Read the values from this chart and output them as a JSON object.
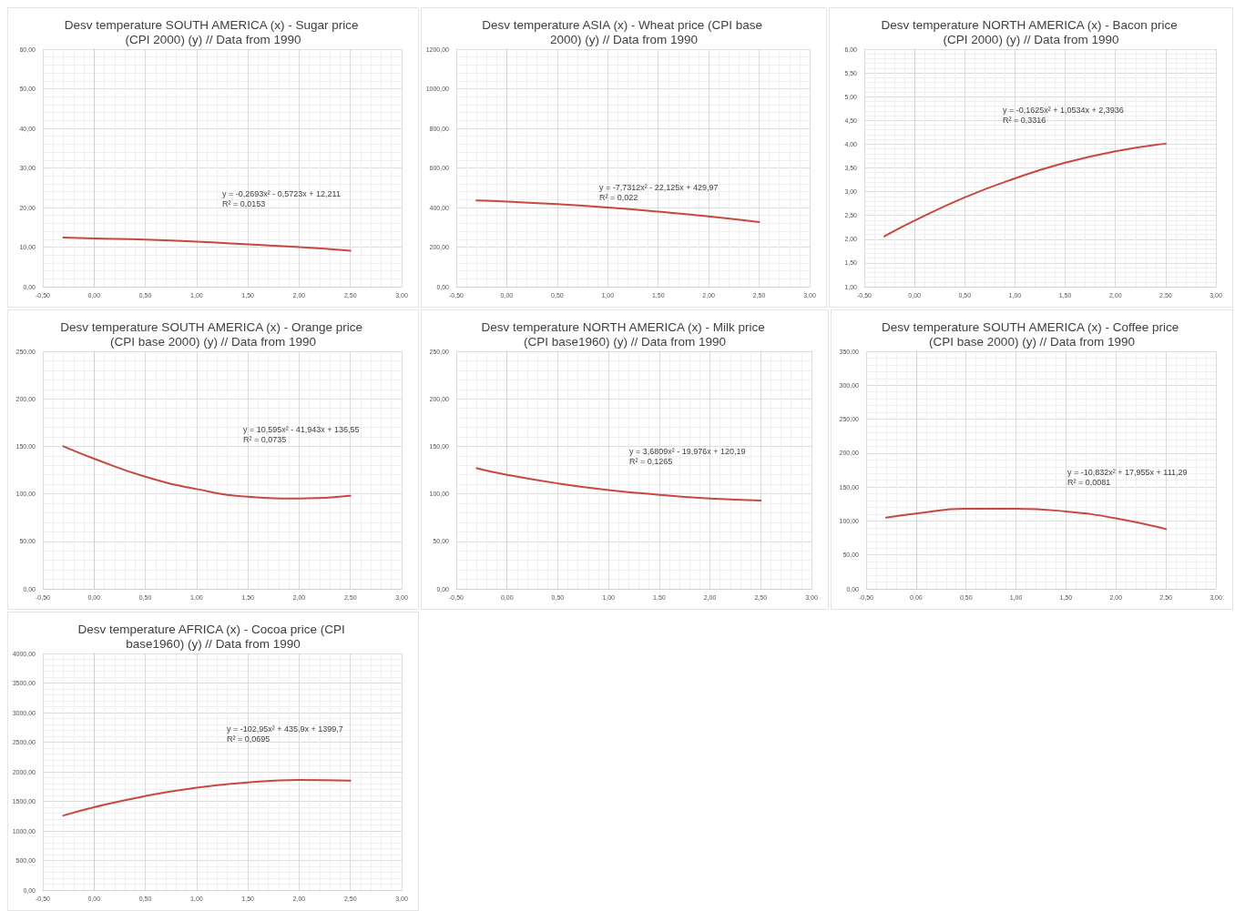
{
  "chart_data": [
    {
      "type": "line",
      "title": "Desv temperature SOUTH AMERICA (x) - Sugar price (CPI 2000) (y) // Data from 1990",
      "annotations": [
        "y = -0,2693x² - 0,5723x + 12,211",
        "R² = 0,0153"
      ],
      "x": [
        -0.3,
        0,
        0.5,
        1,
        1.5,
        2,
        2.5
      ],
      "series": [
        {
          "color": "#c9473f",
          "values": [
            12.4,
            12.2,
            11.9,
            11.4,
            10.7,
            10.0,
            9.1
          ]
        }
      ],
      "xlim": [
        -0.5,
        3
      ],
      "xticks": [
        {
          "value": -0.5,
          "label": "-0,50"
        },
        {
          "value": 0,
          "label": "0,00"
        },
        {
          "value": 0.5,
          "label": "0,50"
        },
        {
          "value": 1,
          "label": "1,00"
        },
        {
          "value": 1.5,
          "label": "1,50"
        },
        {
          "value": 2,
          "label": "2,00"
        },
        {
          "value": 2.5,
          "label": "2,50"
        },
        {
          "value": 3,
          "label": "3,00"
        }
      ],
      "ylim": [
        0,
        60
      ],
      "yticks": [
        {
          "value": 0,
          "label": "0,00"
        },
        {
          "value": 10,
          "label": "10,00"
        },
        {
          "value": 20,
          "label": "20,00"
        },
        {
          "value": 30,
          "label": "30,00"
        },
        {
          "value": 40,
          "label": "40,00"
        },
        {
          "value": 50,
          "label": "50,00"
        },
        {
          "value": 60,
          "label": "60,00"
        }
      ],
      "grid": true,
      "marker": "none"
    },
    {
      "type": "line",
      "title": "Desv temperature ASIA (x) - Wheat price (CPI base 2000) (y) // Data from 1990",
      "annotations": [
        "y = -7,7312x² - 22,125x + 429,97",
        "R² = 0,022"
      ],
      "x": [
        -0.3,
        0,
        0.5,
        1,
        1.5,
        2,
        2.5
      ],
      "series": [
        {
          "color": "#c9473f",
          "values": [
            436,
            430,
            417,
            400,
            379,
            355,
            326
          ]
        }
      ],
      "xlim": [
        -0.5,
        3
      ],
      "xticks": [
        {
          "value": -0.5,
          "label": "-0,50"
        },
        {
          "value": 0,
          "label": "0,00"
        },
        {
          "value": 0.5,
          "label": "0,50"
        },
        {
          "value": 1,
          "label": "1,00"
        },
        {
          "value": 1.5,
          "label": "1,50"
        },
        {
          "value": 2,
          "label": "2,00"
        },
        {
          "value": 2.5,
          "label": "2,50"
        },
        {
          "value": 3,
          "label": "3,00"
        }
      ],
      "ylim": [
        0,
        1200
      ],
      "yticks": [
        {
          "value": 0,
          "label": "0,00"
        },
        {
          "value": 200,
          "label": "200,00"
        },
        {
          "value": 400,
          "label": "400,00"
        },
        {
          "value": 600,
          "label": "600,00"
        },
        {
          "value": 800,
          "label": "800,00"
        },
        {
          "value": 1000,
          "label": "1000,00"
        },
        {
          "value": 1200,
          "label": "1200,00"
        }
      ],
      "grid": true,
      "marker": "none"
    },
    {
      "type": "line",
      "title": "Desv temperature NORTH AMERICA (x) - Bacon price (CPI 2000) (y) // Data from 1990",
      "annotations": [
        "y = -0,1625x² + 1,0534x + 2,3936",
        "R² = 0,3316"
      ],
      "x": [
        -0.3,
        0,
        0.5,
        1,
        1.5,
        2,
        2.5
      ],
      "series": [
        {
          "color": "#c9473f",
          "values": [
            2.06,
            2.39,
            2.88,
            3.28,
            3.61,
            3.85,
            4.01
          ]
        }
      ],
      "xlim": [
        -0.5,
        3
      ],
      "xticks": [
        {
          "value": -0.5,
          "label": "-0,50"
        },
        {
          "value": 0,
          "label": "0,00"
        },
        {
          "value": 0.5,
          "label": "0,50"
        },
        {
          "value": 1,
          "label": "1,00"
        },
        {
          "value": 1.5,
          "label": "1,50"
        },
        {
          "value": 2,
          "label": "2,00"
        },
        {
          "value": 2.5,
          "label": "2,50"
        },
        {
          "value": 3,
          "label": "3,00"
        }
      ],
      "ylim": [
        1,
        6
      ],
      "yticks": [
        {
          "value": 1,
          "label": "1,00"
        },
        {
          "value": 1.5,
          "label": "1,50"
        },
        {
          "value": 2,
          "label": "2,00"
        },
        {
          "value": 2.5,
          "label": "2,50"
        },
        {
          "value": 3,
          "label": "3,00"
        },
        {
          "value": 3.5,
          "label": "3,50"
        },
        {
          "value": 4,
          "label": "4,00"
        },
        {
          "value": 4.5,
          "label": "4,50"
        },
        {
          "value": 5,
          "label": "5,00"
        },
        {
          "value": 5.5,
          "label": "5,50"
        },
        {
          "value": 6,
          "label": "6,00"
        }
      ],
      "grid": true,
      "marker": "none"
    },
    {
      "type": "line",
      "title": "Desv temperature SOUTH AMERICA (x) - Orange price (CPI base 2000) (y) // Data from 1990",
      "annotations": [
        "y = 10,595x² - 41,943x + 136,55",
        "R² = 0,0735"
      ],
      "x": [
        -0.3,
        0,
        0.5,
        1,
        1.5,
        2,
        2.5
      ],
      "series": [
        {
          "color": "#c9473f",
          "values": [
            150,
            137,
            118,
            105,
            97,
            95,
            98
          ]
        }
      ],
      "xlim": [
        -0.5,
        3
      ],
      "xticks": [
        {
          "value": -0.5,
          "label": "-0,50"
        },
        {
          "value": 0,
          "label": "0,00"
        },
        {
          "value": 0.5,
          "label": "0,50"
        },
        {
          "value": 1,
          "label": "1,00"
        },
        {
          "value": 1.5,
          "label": "1,50"
        },
        {
          "value": 2,
          "label": "2,00"
        },
        {
          "value": 2.5,
          "label": "2,50"
        },
        {
          "value": 3,
          "label": "3,00"
        }
      ],
      "ylim": [
        0,
        250
      ],
      "yticks": [
        {
          "value": 0,
          "label": "0,00"
        },
        {
          "value": 50,
          "label": "50,00"
        },
        {
          "value": 100,
          "label": "100,00"
        },
        {
          "value": 150,
          "label": "150,00"
        },
        {
          "value": 200,
          "label": "200,00"
        },
        {
          "value": 250,
          "label": "250,00"
        }
      ],
      "grid": true,
      "marker": "none"
    },
    {
      "type": "line",
      "title": "Desv temperature NORTH AMERICA (x) - Milk price (CPI base1960) (y) // Data from 1990",
      "annotations": [
        "y = 3,6809x² - 19,976x + 120,19",
        "R² = 0,1265"
      ],
      "x": [
        -0.3,
        0,
        0.5,
        1,
        1.5,
        2,
        2.5
      ],
      "series": [
        {
          "color": "#c9473f",
          "values": [
            127,
            120,
            111,
            104,
            99,
            95,
            93
          ]
        }
      ],
      "xlim": [
        -0.5,
        3
      ],
      "xticks": [
        {
          "value": -0.5,
          "label": "-0,50"
        },
        {
          "value": 0,
          "label": "0,00"
        },
        {
          "value": 0.5,
          "label": "0,50"
        },
        {
          "value": 1,
          "label": "1,00"
        },
        {
          "value": 1.5,
          "label": "1,50"
        },
        {
          "value": 2,
          "label": "2,00"
        },
        {
          "value": 2.5,
          "label": "2,50"
        },
        {
          "value": 3,
          "label": "3,00"
        }
      ],
      "ylim": [
        0,
        250
      ],
      "yticks": [
        {
          "value": 0,
          "label": "0,00"
        },
        {
          "value": 50,
          "label": "50,00"
        },
        {
          "value": 100,
          "label": "100,00"
        },
        {
          "value": 150,
          "label": "150,00"
        },
        {
          "value": 200,
          "label": "200,00"
        },
        {
          "value": 250,
          "label": "250,00"
        }
      ],
      "grid": true,
      "marker": "none"
    },
    {
      "type": "line",
      "title": "Desv temperature SOUTH AMERICA (x) - Coffee price (CPI base 2000) (y) // Data from 1990",
      "annotations": [
        "y = -10,832x² + 17,955x + 111,29",
        "R² = 0,0081"
      ],
      "x": [
        -0.3,
        0,
        0.5,
        1,
        1.5,
        2,
        2.5
      ],
      "series": [
        {
          "color": "#c9473f",
          "values": [
            105,
            111,
            118,
            118,
            114,
            104,
            88
          ]
        }
      ],
      "xlim": [
        -0.5,
        3
      ],
      "xticks": [
        {
          "value": -0.5,
          "label": "-0,50"
        },
        {
          "value": 0,
          "label": "0,00"
        },
        {
          "value": 0.5,
          "label": "0,50"
        },
        {
          "value": 1,
          "label": "1,00"
        },
        {
          "value": 1.5,
          "label": "1,50"
        },
        {
          "value": 2,
          "label": "2,00"
        },
        {
          "value": 2.5,
          "label": "2,50"
        },
        {
          "value": 3,
          "label": "3,00"
        }
      ],
      "ylim": [
        0,
        350
      ],
      "yticks": [
        {
          "value": 0,
          "label": "0,00"
        },
        {
          "value": 50,
          "label": "50,00"
        },
        {
          "value": 100,
          "label": "100,00"
        },
        {
          "value": 150,
          "label": "150,00"
        },
        {
          "value": 200,
          "label": "200,00"
        },
        {
          "value": 250,
          "label": "250,00"
        },
        {
          "value": 300,
          "label": "300,00"
        },
        {
          "value": 350,
          "label": "350,00"
        }
      ],
      "grid": true,
      "marker": "none"
    },
    {
      "type": "line",
      "title": "Desv temperature AFRICA (x) - Cocoa price (CPI base1960) (y) // Data from 1990",
      "annotations": [
        "y = -102,95x² + 435,9x + 1399,7",
        "R² = 0,0695"
      ],
      "x": [
        -0.3,
        0,
        0.5,
        1,
        1.5,
        2,
        2.5
      ],
      "series": [
        {
          "color": "#c9473f",
          "values": [
            1260,
            1400,
            1590,
            1730,
            1820,
            1860,
            1850
          ]
        }
      ],
      "xlim": [
        -0.5,
        3
      ],
      "xticks": [
        {
          "value": -0.5,
          "label": "-0,50"
        },
        {
          "value": 0,
          "label": "0,00"
        },
        {
          "value": 0.5,
          "label": "0,50"
        },
        {
          "value": 1,
          "label": "1,00"
        },
        {
          "value": 1.5,
          "label": "1,50"
        },
        {
          "value": 2,
          "label": "2,00"
        },
        {
          "value": 2.5,
          "label": "2,50"
        },
        {
          "value": 3,
          "label": "3,00"
        }
      ],
      "ylim": [
        0,
        4000
      ],
      "yticks": [
        {
          "value": 0,
          "label": "0,00"
        },
        {
          "value": 500,
          "label": "500,00"
        },
        {
          "value": 1000,
          "label": "1000,00"
        },
        {
          "value": 1500,
          "label": "1500,00"
        },
        {
          "value": 2000,
          "label": "2000,00"
        },
        {
          "value": 2500,
          "label": "2500,00"
        },
        {
          "value": 3000,
          "label": "3000,00"
        },
        {
          "value": 3500,
          "label": "3500,00"
        },
        {
          "value": 4000,
          "label": "4000,00"
        }
      ],
      "grid": true,
      "marker": "none"
    }
  ]
}
